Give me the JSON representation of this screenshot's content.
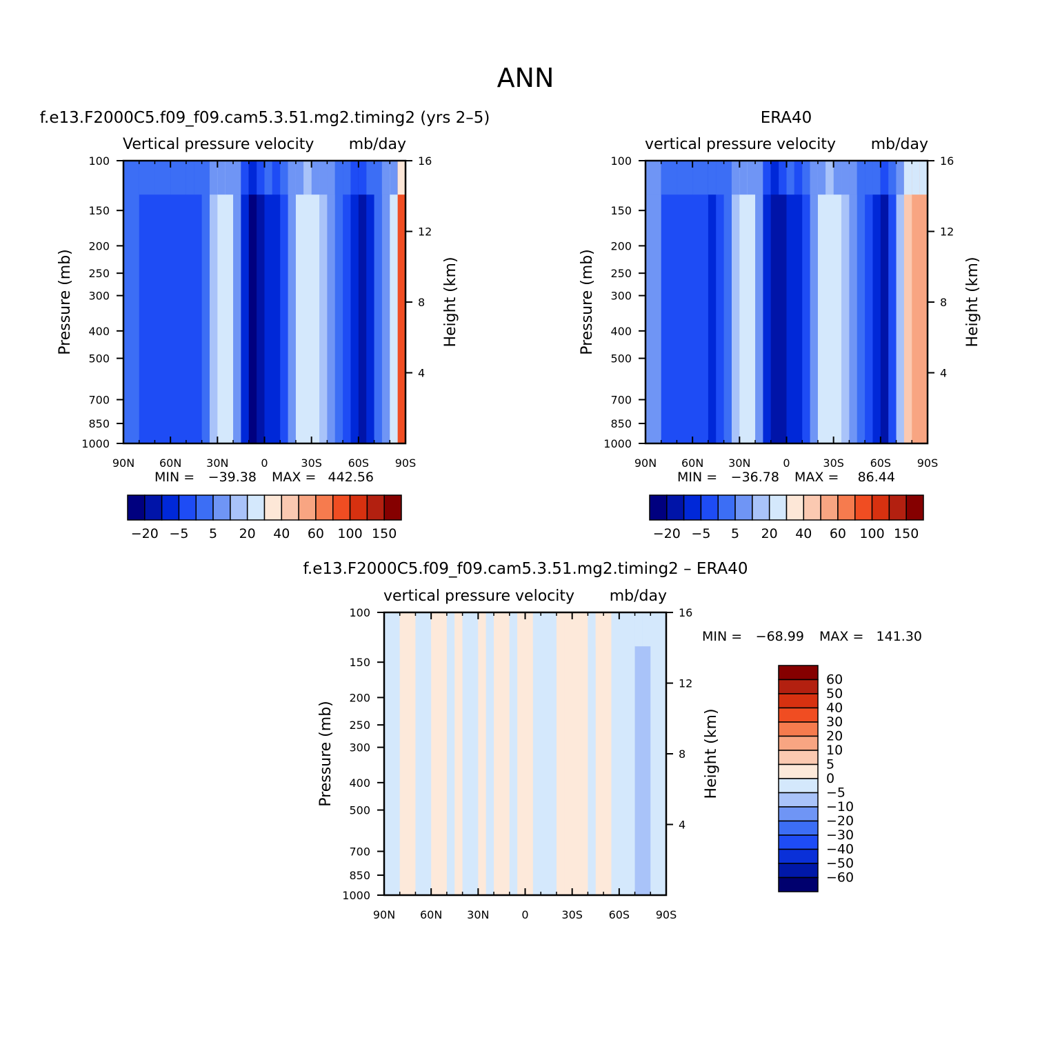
{
  "figure": {
    "title": "ANN",
    "colors": {
      "abs_levels": [
        "#00007f",
        "#0014a8",
        "#0028d8",
        "#1e4cf5",
        "#3c6ef5",
        "#6f95f5",
        "#a9c3f9",
        "#d4e8fc",
        "#fde7d7",
        "#fbc9b1",
        "#f8a582",
        "#f67b4e",
        "#f04d22",
        "#d73110",
        "#b32010",
        "#850000"
      ],
      "diff_levels": [
        "#00006e",
        "#0018a8",
        "#0a30d8",
        "#1e4cf5",
        "#3c6ef5",
        "#6f95f5",
        "#a9c3f9",
        "#d4e8fc",
        "#fde9da",
        "#fbc9b1",
        "#f8a582",
        "#f67b4e",
        "#f04d22",
        "#d73110",
        "#b32010",
        "#850000"
      ]
    }
  },
  "chart_data": [
    {
      "type": "heatmap",
      "panel_title": "f.e13.F2000C5.f09_f09.cam5.3.51.mg2.timing2 (yrs 2–5)",
      "field_label": "Vertical pressure velocity",
      "units": "mb/day",
      "ylabel": "Pressure (mb)",
      "ylabel_right": "Height (km)",
      "x_ticks": [
        "90N",
        "60N",
        "30N",
        "0",
        "30S",
        "60S",
        "90S"
      ],
      "y_ticks": [
        100,
        150,
        200,
        250,
        300,
        400,
        500,
        700,
        850,
        1000
      ],
      "y_right_ticks": [
        16,
        12,
        8,
        4
      ],
      "min_label": "MIN =",
      "min_value": "−39.38",
      "max_label": "MAX =",
      "max_value": "442.56",
      "colorbar_labels": [
        "−20",
        "−5",
        "5",
        "20",
        "40",
        "60",
        "100",
        "150"
      ],
      "columns": [
        {
          "lat": 90,
          "v": -3
        },
        {
          "lat": 80,
          "v": -6
        },
        {
          "lat": 70,
          "v": -8
        },
        {
          "lat": 60,
          "v": -6
        },
        {
          "lat": 50,
          "v": -9
        },
        {
          "lat": 45,
          "v": -6
        },
        {
          "lat": 40,
          "v": -2
        },
        {
          "lat": 35,
          "v": 8
        },
        {
          "lat": 30,
          "v": 14
        },
        {
          "lat": 25,
          "v": 10
        },
        {
          "lat": 20,
          "v": 2
        },
        {
          "lat": 15,
          "v": -18
        },
        {
          "lat": 10,
          "v": -34
        },
        {
          "lat": 5,
          "v": -22
        },
        {
          "lat": 0,
          "v": -12
        },
        {
          "lat": -5,
          "v": -16
        },
        {
          "lat": -10,
          "v": -6
        },
        {
          "lat": -15,
          "v": 4
        },
        {
          "lat": -20,
          "v": 12
        },
        {
          "lat": -25,
          "v": 16
        },
        {
          "lat": -30,
          "v": 14
        },
        {
          "lat": -35,
          "v": 8
        },
        {
          "lat": -40,
          "v": 2
        },
        {
          "lat": -45,
          "v": -4
        },
        {
          "lat": -50,
          "v": -10
        },
        {
          "lat": -55,
          "v": -16
        },
        {
          "lat": -60,
          "v": -24
        },
        {
          "lat": -65,
          "v": -14
        },
        {
          "lat": -70,
          "v": -4
        },
        {
          "lat": -75,
          "v": 2
        },
        {
          "lat": -80,
          "v": 10
        },
        {
          "lat": -85,
          "v": 60
        }
      ]
    },
    {
      "type": "heatmap",
      "panel_title": "ERA40",
      "field_label": "vertical pressure velocity",
      "units": "mb/day",
      "ylabel": "Pressure (mb)",
      "ylabel_right": "Height (km)",
      "x_ticks": [
        "90N",
        "60N",
        "30N",
        "0",
        "30S",
        "60S",
        "90S"
      ],
      "y_ticks": [
        100,
        150,
        200,
        250,
        300,
        400,
        500,
        700,
        850,
        1000
      ],
      "y_right_ticks": [
        16,
        12,
        8,
        4
      ],
      "min_label": "MIN =",
      "min_value": "−36.78",
      "max_label": "MAX =",
      "max_value": "86.44",
      "colorbar_labels": [
        "−20",
        "−5",
        "5",
        "20",
        "40",
        "60",
        "100",
        "150"
      ],
      "columns": [
        {
          "lat": 90,
          "v": 2
        },
        {
          "lat": 80,
          "v": -6
        },
        {
          "lat": 70,
          "v": -10
        },
        {
          "lat": 60,
          "v": -6
        },
        {
          "lat": 50,
          "v": -12
        },
        {
          "lat": 45,
          "v": -6
        },
        {
          "lat": 40,
          "v": -2
        },
        {
          "lat": 35,
          "v": 6
        },
        {
          "lat": 30,
          "v": 12
        },
        {
          "lat": 25,
          "v": 14
        },
        {
          "lat": 20,
          "v": 4
        },
        {
          "lat": 15,
          "v": -16
        },
        {
          "lat": 10,
          "v": -30
        },
        {
          "lat": 5,
          "v": -26
        },
        {
          "lat": 0,
          "v": -14
        },
        {
          "lat": -5,
          "v": -18
        },
        {
          "lat": -10,
          "v": -8
        },
        {
          "lat": -15,
          "v": 2
        },
        {
          "lat": -20,
          "v": 12
        },
        {
          "lat": -25,
          "v": 16
        },
        {
          "lat": -30,
          "v": 14
        },
        {
          "lat": -35,
          "v": 8
        },
        {
          "lat": -40,
          "v": 2
        },
        {
          "lat": -45,
          "v": -4
        },
        {
          "lat": -50,
          "v": -10
        },
        {
          "lat": -55,
          "v": -14
        },
        {
          "lat": -60,
          "v": -22
        },
        {
          "lat": -65,
          "v": -10
        },
        {
          "lat": -70,
          "v": 8
        },
        {
          "lat": -75,
          "v": 30
        },
        {
          "lat": -80,
          "v": 45
        },
        {
          "lat": -85,
          "v": 40
        }
      ]
    },
    {
      "type": "heatmap",
      "panel_title": "f.e13.F2000C5.f09_f09.cam5.3.51.mg2.timing2 – ERA40",
      "field_label": "vertical pressure velocity",
      "units": "mb/day",
      "ylabel": "Pressure (mb)",
      "ylabel_right": "Height (km)",
      "x_ticks": [
        "90N",
        "60N",
        "30N",
        "0",
        "30S",
        "60S",
        "90S"
      ],
      "y_ticks": [
        100,
        150,
        200,
        250,
        300,
        400,
        500,
        700,
        850,
        1000
      ],
      "y_right_ticks": [
        16,
        12,
        8,
        4
      ],
      "min_label": "MIN =",
      "min_value": "−68.99",
      "max_label": "MAX =",
      "max_value": "141.30",
      "colorbar_labels": [
        "60",
        "50",
        "40",
        "30",
        "20",
        "10",
        "5",
        "0",
        "−5",
        "−10",
        "−20",
        "−30",
        "−40",
        "−50",
        "−60"
      ],
      "columns": [
        {
          "lat": 90,
          "v": -3
        },
        {
          "lat": 80,
          "v": 2
        },
        {
          "lat": 70,
          "v": -2
        },
        {
          "lat": 60,
          "v": 2
        },
        {
          "lat": 50,
          "v": -2
        },
        {
          "lat": 45,
          "v": 2
        },
        {
          "lat": 40,
          "v": -2
        },
        {
          "lat": 35,
          "v": -2
        },
        {
          "lat": 30,
          "v": 2
        },
        {
          "lat": 25,
          "v": -2
        },
        {
          "lat": 20,
          "v": 2
        },
        {
          "lat": 15,
          "v": 2
        },
        {
          "lat": 10,
          "v": -2
        },
        {
          "lat": 5,
          "v": 3
        },
        {
          "lat": 0,
          "v": 2
        },
        {
          "lat": -5,
          "v": -2
        },
        {
          "lat": -10,
          "v": -2
        },
        {
          "lat": -15,
          "v": -2
        },
        {
          "lat": -20,
          "v": 2
        },
        {
          "lat": -25,
          "v": 2
        },
        {
          "lat": -30,
          "v": 2
        },
        {
          "lat": -35,
          "v": 2
        },
        {
          "lat": -40,
          "v": -2
        },
        {
          "lat": -45,
          "v": 2
        },
        {
          "lat": -50,
          "v": 2
        },
        {
          "lat": -55,
          "v": -2
        },
        {
          "lat": -60,
          "v": -2
        },
        {
          "lat": -65,
          "v": -4
        },
        {
          "lat": -70,
          "v": -8
        },
        {
          "lat": -75,
          "v": -6
        },
        {
          "lat": -80,
          "v": -3
        },
        {
          "lat": -85,
          "v": -2
        }
      ]
    }
  ]
}
